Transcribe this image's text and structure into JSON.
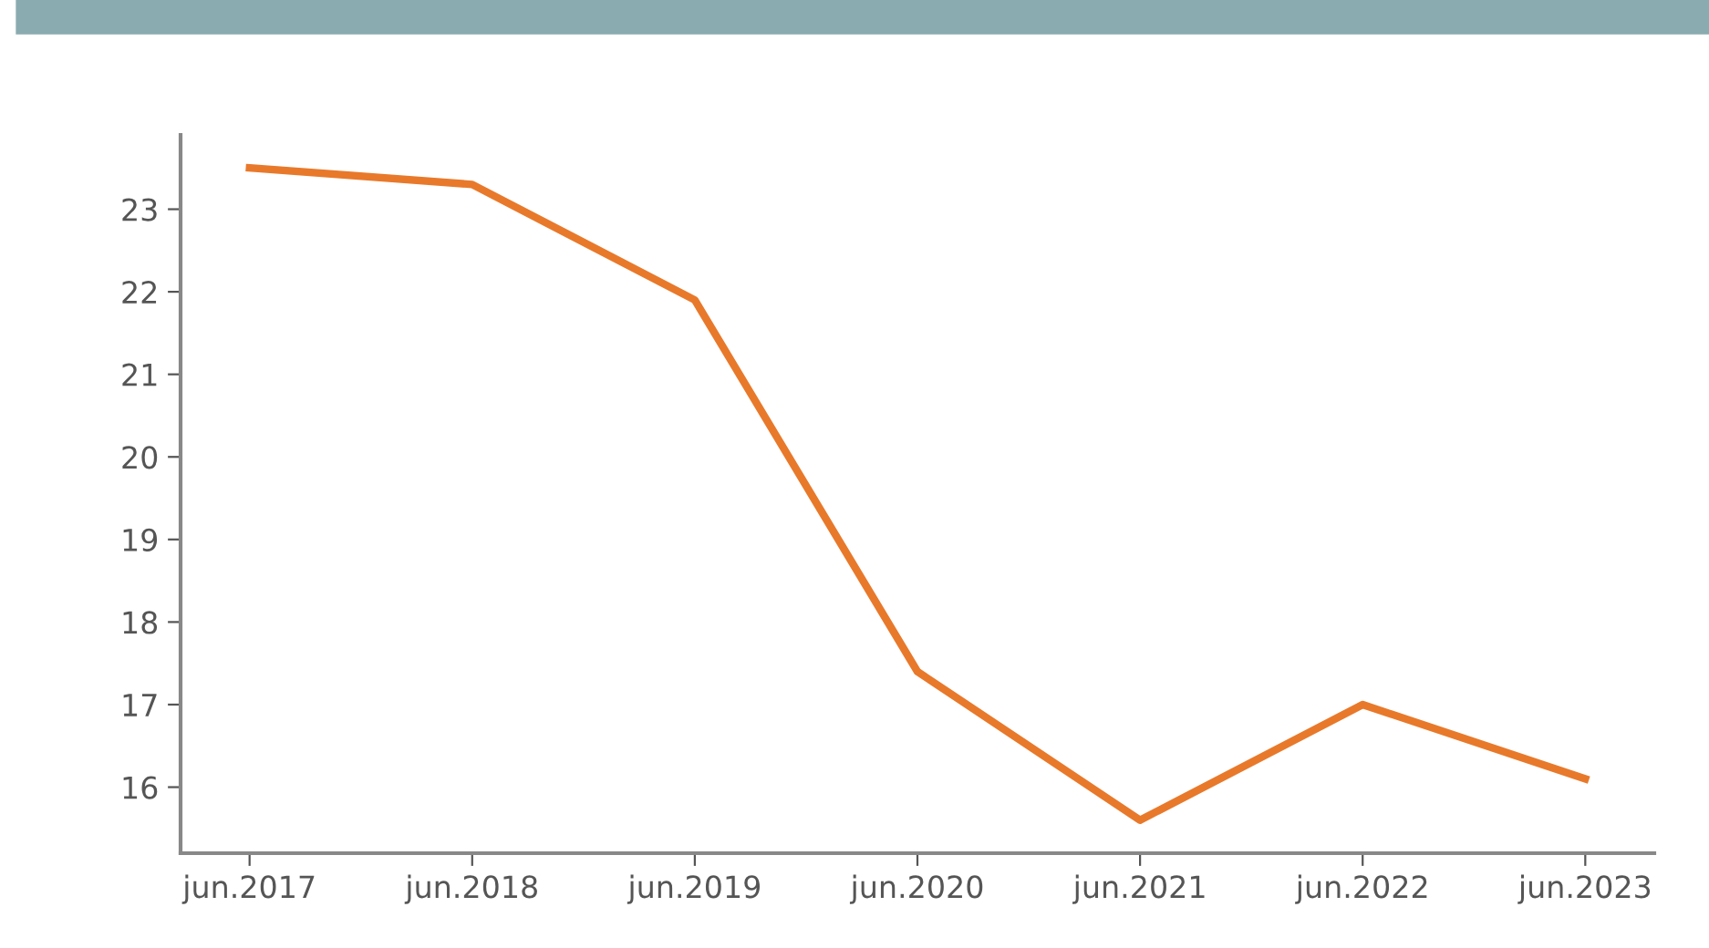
{
  "chart_data": {
    "type": "line",
    "categories": [
      "jun.2017",
      "jun.2018",
      "jun.2019",
      "jun.2020",
      "jun.2021",
      "jun.2022",
      "jun.2023"
    ],
    "series": [
      {
        "color": "#e8792b",
        "values": [
          23.5,
          23.3,
          21.9,
          17.4,
          15.6,
          17.0,
          16.1
        ]
      }
    ],
    "ylim": [
      15.2,
      23.9
    ],
    "yticks": [
      16,
      17,
      18,
      19,
      20,
      21,
      22,
      23
    ],
    "grid": false,
    "marker": "none",
    "line_style": "solid"
  }
}
